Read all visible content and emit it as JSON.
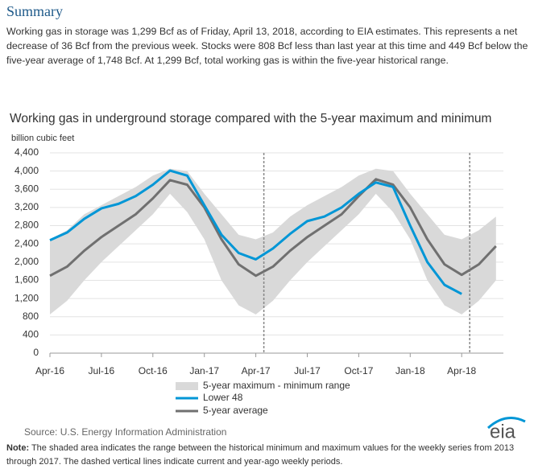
{
  "summary": {
    "title": "Summary",
    "text": "Working gas in storage was 1,299 Bcf as of Friday, April 13, 2018, according to EIA estimates. This represents a net decrease of 36 Bcf from the previous week. Stocks were 808 Bcf less than last year at this time and 449 Bcf below the five-year average of 1,748 Bcf. At 1,299 Bcf, total working gas is within the five-year historical range."
  },
  "chart_data": {
    "type": "line",
    "title": "Working gas in underground  storage compared with the 5-year maximum  and minimum",
    "y_label": "billion cubic feet",
    "x": [
      "Apr-16",
      "May-16",
      "Jun-16",
      "Jul-16",
      "Aug-16",
      "Sep-16",
      "Oct-16",
      "Nov-16",
      "Dec-16",
      "Jan-17",
      "Feb-17",
      "Mar-17",
      "Apr-17",
      "May-17",
      "Jun-17",
      "Jul-17",
      "Aug-17",
      "Sep-17",
      "Oct-17",
      "Nov-17",
      "Dec-17",
      "Jan-18",
      "Feb-18",
      "Mar-18",
      "Apr-18",
      "May-18",
      "Jun-18"
    ],
    "xticks": [
      "Apr-16",
      "Jul-16",
      "Oct-16",
      "Jan-17",
      "Apr-17",
      "Jul-17",
      "Oct-17",
      "Jan-18",
      "Apr-18"
    ],
    "ylim": [
      0,
      4400
    ],
    "yticks": [
      0,
      400,
      800,
      {
        "value": 1200,
        "label": "1,200"
      },
      {
        "value": 1600,
        "label": "1,600"
      },
      {
        "value": 2000,
        "label": "2,000"
      },
      {
        "value": 2400,
        "label": "2,400"
      },
      {
        "value": 2800,
        "label": "2,800"
      },
      {
        "value": 3200,
        "label": "3,200"
      },
      {
        "value": 3600,
        "label": "3,600"
      },
      {
        "value": 4000,
        "label": "4,000"
      },
      {
        "value": 4400,
        "label": "4,400"
      }
    ],
    "grid": true,
    "range": {
      "name": "5-year maximum - minimum range",
      "color": "#d9d9d9",
      "max": [
        2500,
        2700,
        3050,
        3250,
        3450,
        3650,
        3900,
        4050,
        4000,
        3500,
        3050,
        2600,
        2500,
        2650,
        3000,
        3250,
        3450,
        3650,
        3900,
        4050,
        4000,
        3500,
        3050,
        2600,
        2500,
        2700,
        3000
      ],
      "min": [
        850,
        1150,
        1600,
        2000,
        2350,
        2700,
        3050,
        3500,
        3100,
        2500,
        1600,
        1050,
        850,
        1150,
        1600,
        2000,
        2350,
        2700,
        3050,
        3500,
        3100,
        2500,
        1600,
        1050,
        850,
        1150,
        1600
      ]
    },
    "series": [
      {
        "name": "Lower 48",
        "color": "#0096d6",
        "values": [
          2480,
          2650,
          2950,
          3180,
          3280,
          3450,
          3700,
          4010,
          3900,
          3250,
          2600,
          2200,
          2060,
          2300,
          2620,
          2900,
          3000,
          3200,
          3500,
          3750,
          3650,
          2800,
          2000,
          1500,
          1300,
          null,
          null
        ]
      },
      {
        "name": "5-year average",
        "color": "#707070",
        "values": [
          1700,
          1900,
          2250,
          2550,
          2800,
          3050,
          3400,
          3800,
          3700,
          3200,
          2500,
          1950,
          1700,
          1900,
          2250,
          2550,
          2800,
          3050,
          3450,
          3820,
          3700,
          3200,
          2500,
          1950,
          1720,
          1950,
          2350
        ]
      }
    ],
    "vlines": [
      "Apr-17",
      "Apr-18"
    ]
  },
  "source": "Source:  U.S. Energy Information Administration",
  "note_label": "Note:",
  "note": " The shaded area indicates the range between the historical minimum and maximum values for the weekly series from 2013 through 2017. The dashed vertical lines indicate current and year-ago weekly periods."
}
